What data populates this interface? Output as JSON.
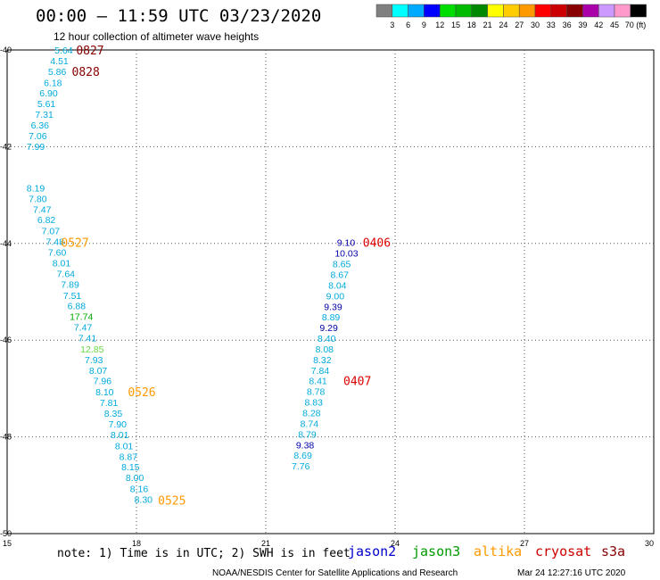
{
  "header": {
    "title": "00:00 – 11:59 UTC 03/23/2020",
    "subtitle": "12 hour collection of altimeter wave heights"
  },
  "colorbar": {
    "labels": [
      "3",
      "6",
      "9",
      "12",
      "15",
      "18",
      "21",
      "24",
      "27",
      "30",
      "33",
      "36",
      "39",
      "42",
      "45",
      "70 (ft)"
    ],
    "colors": [
      "#808080",
      "#00ffff",
      "#00aaff",
      "#0000ff",
      "#00dd00",
      "#00bb00",
      "#008800",
      "#ffff00",
      "#ffcc00",
      "#ff9900",
      "#ff0000",
      "#cc0000",
      "#880000",
      "#aa00aa",
      "#cc99ff",
      "#ff99cc",
      "#000000"
    ]
  },
  "footer": {
    "note": "note: 1) Time is in UTC; 2) SWH is in feet",
    "satellites": [
      {
        "name": "jason2",
        "color": "#0000cc"
      },
      {
        "name": "jason3",
        "color": "#009900"
      },
      {
        "name": "altika",
        "color": "#ff9900"
      },
      {
        "name": "cryosat",
        "color": "#cc0000"
      },
      {
        "name": "s3a",
        "color": "#880000"
      }
    ],
    "credit": "NOAA/NESDIS Center for Satellite Applications and Research",
    "timestamp": "Mar 24 12:27:16 UTC 2020"
  },
  "chart_data": {
    "type": "scatter",
    "xlim": [
      15,
      30
    ],
    "ylim": [
      -50,
      -40
    ],
    "x_ticks": [
      "15",
      "18",
      "21",
      "24",
      "27",
      "30"
    ],
    "y_ticks": [
      "-40",
      "-42",
      "-44",
      "-46",
      "-48",
      "-50"
    ],
    "grid": true,
    "track_color": "#00aadd",
    "tracks": [
      {
        "name": "west-track",
        "points": [
          {
            "x": 16.1,
            "y": -40.0,
            "label": "5.64"
          },
          {
            "x": 16.0,
            "y": -40.22,
            "label": "4.51"
          },
          {
            "x": 15.95,
            "y": -40.44,
            "label": "5.86"
          },
          {
            "x": 15.85,
            "y": -40.67,
            "label": "6.18"
          },
          {
            "x": 15.75,
            "y": -40.89,
            "label": "6.90"
          },
          {
            "x": 15.7,
            "y": -41.11,
            "label": "5.61"
          },
          {
            "x": 15.65,
            "y": -41.33,
            "label": "7.31"
          },
          {
            "x": 15.55,
            "y": -41.55,
            "label": "6.36"
          },
          {
            "x": 15.5,
            "y": -41.77,
            "label": "7.06"
          },
          {
            "x": 15.45,
            "y": -41.99,
            "label": "7.99"
          },
          {
            "x": 15.45,
            "y": -42.85,
            "label": "8.19"
          },
          {
            "x": 15.5,
            "y": -43.07,
            "label": "7.80"
          },
          {
            "x": 15.6,
            "y": -43.29,
            "label": "7.47"
          },
          {
            "x": 15.7,
            "y": -43.51,
            "label": "6.82"
          },
          {
            "x": 15.8,
            "y": -43.74,
            "label": "7.07"
          },
          {
            "x": 15.9,
            "y": -43.96,
            "label": "7.48"
          },
          {
            "x": 15.95,
            "y": -44.18,
            "label": "7.60"
          },
          {
            "x": 16.05,
            "y": -44.4,
            "label": "8.01"
          },
          {
            "x": 16.15,
            "y": -44.62,
            "label": "7.64"
          },
          {
            "x": 16.25,
            "y": -44.84,
            "label": "7.89"
          },
          {
            "x": 16.3,
            "y": -45.07,
            "label": "7.51"
          },
          {
            "x": 16.4,
            "y": -45.29,
            "label": "6.88"
          },
          {
            "x": 16.45,
            "y": -45.51,
            "label": "17.74",
            "color": "#00aa00"
          },
          {
            "x": 16.55,
            "y": -45.73,
            "label": "7.47"
          },
          {
            "x": 16.65,
            "y": -45.95,
            "label": "7.41"
          },
          {
            "x": 16.7,
            "y": -46.18,
            "label": "12.85",
            "color": "#66dd44"
          },
          {
            "x": 16.8,
            "y": -46.4,
            "label": "7.93"
          },
          {
            "x": 16.9,
            "y": -46.62,
            "label": "8.07"
          },
          {
            "x": 17.0,
            "y": -46.84,
            "label": "7.96"
          },
          {
            "x": 17.05,
            "y": -47.07,
            "label": "8.10"
          },
          {
            "x": 17.15,
            "y": -47.29,
            "label": "7.81"
          },
          {
            "x": 17.25,
            "y": -47.51,
            "label": "8.35"
          },
          {
            "x": 17.35,
            "y": -47.73,
            "label": "7.90"
          },
          {
            "x": 17.4,
            "y": -47.95,
            "label": "8.01"
          },
          {
            "x": 17.5,
            "y": -48.18,
            "label": "8.01"
          },
          {
            "x": 17.6,
            "y": -48.4,
            "label": "8.87"
          },
          {
            "x": 17.65,
            "y": -48.62,
            "label": "8.15"
          },
          {
            "x": 17.75,
            "y": -48.84,
            "label": "8.00"
          },
          {
            "x": 17.85,
            "y": -49.07,
            "label": "8.16"
          },
          {
            "x": 17.95,
            "y": -49.29,
            "label": "8.30"
          }
        ]
      },
      {
        "name": "east-track",
        "points": [
          {
            "x": 22.65,
            "y": -43.98,
            "label": "9.10",
            "color": "#0000aa"
          },
          {
            "x": 22.6,
            "y": -44.2,
            "label": "10.03",
            "color": "#0000aa"
          },
          {
            "x": 22.55,
            "y": -44.42,
            "label": "8.65"
          },
          {
            "x": 22.5,
            "y": -44.64,
            "label": "8.67"
          },
          {
            "x": 22.45,
            "y": -44.86,
            "label": "8.04"
          },
          {
            "x": 22.4,
            "y": -45.08,
            "label": "9.00"
          },
          {
            "x": 22.35,
            "y": -45.3,
            "label": "9.39",
            "color": "#0000aa"
          },
          {
            "x": 22.3,
            "y": -45.52,
            "label": "8.89"
          },
          {
            "x": 22.25,
            "y": -45.74,
            "label": "9.29",
            "color": "#0000aa"
          },
          {
            "x": 22.2,
            "y": -45.96,
            "label": "8.40"
          },
          {
            "x": 22.15,
            "y": -46.18,
            "label": "8.08"
          },
          {
            "x": 22.1,
            "y": -46.4,
            "label": "8.32"
          },
          {
            "x": 22.05,
            "y": -46.62,
            "label": "7.84"
          },
          {
            "x": 22.0,
            "y": -46.84,
            "label": "8.41"
          },
          {
            "x": 21.95,
            "y": -47.06,
            "label": "8.78"
          },
          {
            "x": 21.9,
            "y": -47.28,
            "label": "8.83"
          },
          {
            "x": 21.85,
            "y": -47.5,
            "label": "8.28"
          },
          {
            "x": 21.8,
            "y": -47.72,
            "label": "8.74"
          },
          {
            "x": 21.75,
            "y": -47.94,
            "label": "8.79"
          },
          {
            "x": 21.7,
            "y": -48.16,
            "label": "9.38",
            "color": "#0000aa"
          },
          {
            "x": 21.65,
            "y": -48.38,
            "label": "8.69"
          },
          {
            "x": 21.6,
            "y": -48.6,
            "label": "7.76"
          }
        ]
      }
    ],
    "pass_times": [
      {
        "x": 16.6,
        "y": -40.0,
        "label": "0827",
        "color": "#880000"
      },
      {
        "x": 16.5,
        "y": -40.44,
        "label": "0828",
        "color": "#880000"
      },
      {
        "x": 16.25,
        "y": -43.98,
        "label": "0527",
        "color": "#ff9900"
      },
      {
        "x": 17.8,
        "y": -47.07,
        "label": "0526",
        "color": "#ff9900"
      },
      {
        "x": 18.5,
        "y": -49.31,
        "label": "0525",
        "color": "#ff9900"
      },
      {
        "x": 23.25,
        "y": -43.98,
        "label": "0406",
        "color": "#dd0000"
      },
      {
        "x": 22.8,
        "y": -46.84,
        "label": "0407",
        "color": "#dd0000"
      }
    ]
  }
}
